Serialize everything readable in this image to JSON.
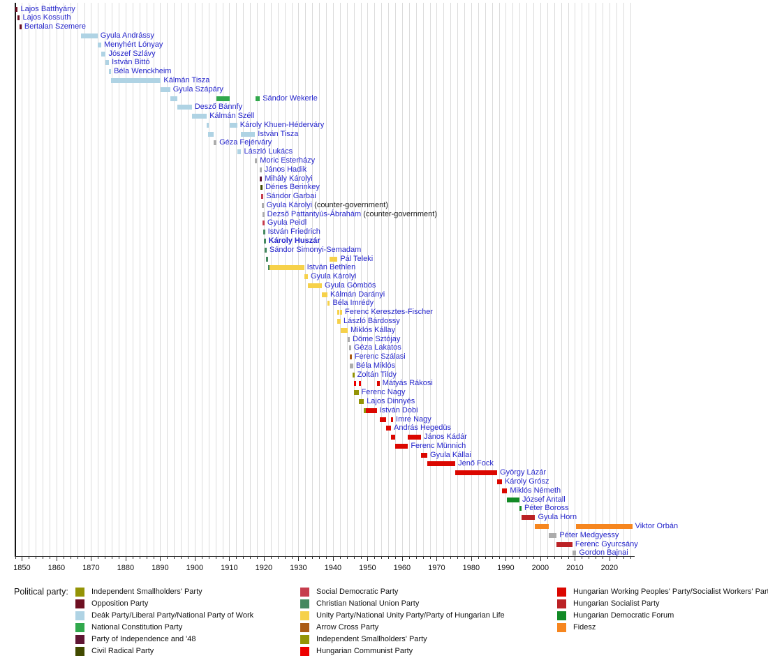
{
  "legend": {
    "title": "Political party:"
  },
  "chart_data": {
    "type": "timeline",
    "x_axis": {
      "min": 1848,
      "max": 2027,
      "minor_tick_step": 2,
      "tick_labels": [
        1850,
        1860,
        1870,
        1880,
        1890,
        1900,
        1910,
        1920,
        1930,
        1940,
        1950,
        1960,
        1970,
        1980,
        1990,
        2000,
        2010,
        2020
      ]
    },
    "parties": {
      "independent_smallholders": {
        "label": "Independent Smallholders' Party",
        "color": "#949406"
      },
      "opposition": {
        "label": "Opposition Party",
        "color": "#6E1022"
      },
      "deak": {
        "label": "Deák Party/Liberal Party/National Party of Work",
        "color": "#AFD3E4"
      },
      "national_constitution": {
        "label": "National Constitution Party",
        "color": "#31A84C"
      },
      "independence48": {
        "label": "Party of Independence and '48",
        "color": "#5F1533"
      },
      "civil_radical": {
        "label": "Civil Radical Party",
        "color": "#414A00"
      },
      "social_democratic": {
        "label": "Social Democratic Party",
        "color": "#C63D4D"
      },
      "christian_national": {
        "label": "Christian National Union Party",
        "color": "#44895F"
      },
      "unity": {
        "label": "Unity Party/National Unity Party/Party of Hungarian Life",
        "color": "#F6D14A"
      },
      "arrow_cross": {
        "label": "Arrow Cross Party",
        "color": "#AB5B13"
      },
      "communist": {
        "label": "Hungarian Communist Party",
        "color": "#ED0000"
      },
      "working_peoples": {
        "label": "Hungarian Working Peoples' Party/Socialist Workers' Party",
        "color": "#DB0700"
      },
      "socialist": {
        "label": "Hungarian Socialist Party",
        "color": "#BB2225"
      },
      "mdf": {
        "label": "Hungarian Democratic Forum",
        "color": "#128A26"
      },
      "fidesz": {
        "label": "Fidesz",
        "color": "#F6861F"
      },
      "none": {
        "label": "",
        "color": "#ACACAC"
      }
    },
    "legend_columns": [
      [
        "independent_smallholders",
        "opposition",
        "deak",
        "national_constitution",
        "independence48",
        "civil_radical"
      ],
      [
        "social_democratic",
        "christian_national",
        "unity",
        "arrow_cross",
        "independent_smallholders",
        "communist"
      ],
      [
        "working_peoples",
        "socialist",
        "mdf",
        "fidesz"
      ]
    ],
    "rows": [
      {
        "name": "Lajos Batthyány",
        "segments": [
          [
            1848.2,
            1848.8,
            "opposition"
          ]
        ]
      },
      {
        "name": "Lajos Kossuth",
        "segments": [
          [
            1848.8,
            1849.3,
            "opposition"
          ]
        ]
      },
      {
        "name": "Bertalan Szemere",
        "segments": [
          [
            1849.3,
            1849.65,
            "opposition"
          ]
        ]
      },
      {
        "name": "Gyula Andrássy",
        "segments": [
          [
            1867.15,
            1871.9,
            "deak"
          ]
        ]
      },
      {
        "name": "Menyhért Lónyay",
        "segments": [
          [
            1871.9,
            1872.95,
            "deak"
          ]
        ]
      },
      {
        "name": "Jószef Szlávy",
        "segments": [
          [
            1872.95,
            1874.25,
            "deak"
          ]
        ]
      },
      {
        "name": "István Bittó",
        "segments": [
          [
            1874.25,
            1875.2,
            "deak"
          ]
        ]
      },
      {
        "name": "Béla Wenckheim",
        "segments": [
          [
            1875.2,
            1875.8,
            "deak"
          ]
        ]
      },
      {
        "name": "Kálmán Tisza",
        "segments": [
          [
            1875.8,
            1890.2,
            "deak"
          ]
        ]
      },
      {
        "name": "Gyula Szápáry",
        "segments": [
          [
            1890.2,
            1892.9,
            "deak"
          ]
        ]
      },
      {
        "name": "Sándor Wekerle",
        "segments": [
          [
            1892.9,
            1895.0,
            "deak"
          ],
          [
            1906.3,
            1910.1,
            "national_constitution"
          ],
          [
            1917.65,
            1918.85,
            "national_constitution"
          ]
        ]
      },
      {
        "name": "Desző Bánnfy",
        "segments": [
          [
            1895.0,
            1899.15,
            "deak"
          ]
        ]
      },
      {
        "name": "Kálmán Széll",
        "segments": [
          [
            1899.15,
            1903.5,
            "deak"
          ]
        ]
      },
      {
        "name": "Károly Khuen-Héderváry",
        "segments": [
          [
            1903.5,
            1903.9,
            "deak"
          ],
          [
            1910.1,
            1912.3,
            "deak"
          ]
        ]
      },
      {
        "name": "István Tisza",
        "segments": [
          [
            1903.9,
            1905.45,
            "deak"
          ],
          [
            1913.45,
            1917.45,
            "deak"
          ]
        ]
      },
      {
        "name": "Géza Fejérváry",
        "segments": [
          [
            1905.45,
            1906.3,
            "none"
          ]
        ]
      },
      {
        "name": "László Lukács",
        "segments": [
          [
            1912.3,
            1913.45,
            "deak"
          ]
        ]
      },
      {
        "name": "Moric Esterházy",
        "segments": [
          [
            1917.45,
            1917.65,
            "none"
          ]
        ]
      },
      {
        "name": "János Hadik",
        "segments": [
          [
            1918.75,
            1918.9,
            "none"
          ]
        ]
      },
      {
        "name": "Mihály Károlyi",
        "segments": [
          [
            1918.85,
            1919.05,
            "independence48"
          ]
        ]
      },
      {
        "name": "Dénes Berinkey",
        "segments": [
          [
            1919.05,
            1919.25,
            "civil_radical"
          ]
        ]
      },
      {
        "name": "Sándor Garbai",
        "segments": [
          [
            1919.25,
            1919.6,
            "social_democratic"
          ]
        ]
      },
      {
        "name": "Gyula Károlyi",
        "suffix": " (counter-government)",
        "segments": [
          [
            1919.35,
            1919.55,
            "none"
          ]
        ]
      },
      {
        "name": "Dezső Pattantyús-Ábrahám",
        "suffix": " (counter-government)",
        "segments": [
          [
            1919.55,
            1919.8,
            "none"
          ]
        ]
      },
      {
        "name": "Gyula Peidl",
        "segments": [
          [
            1919.6,
            1919.75,
            "social_democratic"
          ]
        ]
      },
      {
        "name": "István Friedrich",
        "segments": [
          [
            1919.75,
            1919.95,
            "christian_national"
          ]
        ]
      },
      {
        "name": "Károly Huszár",
        "bold": true,
        "segments": [
          [
            1919.95,
            1920.2,
            "christian_national"
          ]
        ]
      },
      {
        "name": "Sándor Simonyi-Semadam",
        "segments": [
          [
            1920.2,
            1920.55,
            "christian_national"
          ]
        ]
      },
      {
        "name": "Pál Teleki",
        "segments": [
          [
            1920.55,
            1921.3,
            "christian_national"
          ],
          [
            1939.1,
            1941.3,
            "unity"
          ]
        ]
      },
      {
        "name": "István Bethlen",
        "segments": [
          [
            1921.3,
            1921.65,
            "christian_national"
          ],
          [
            1921.65,
            1931.65,
            "unity"
          ]
        ]
      },
      {
        "name": "Gyula Károlyi",
        "segments": [
          [
            1931.65,
            1932.75,
            "unity"
          ]
        ]
      },
      {
        "name": "Gyula Gömbös",
        "segments": [
          [
            1932.75,
            1936.8,
            "unity"
          ]
        ]
      },
      {
        "name": "Kálmán Darányi",
        "segments": [
          [
            1936.8,
            1938.4,
            "unity"
          ]
        ]
      },
      {
        "name": "Béla Imrédy",
        "segments": [
          [
            1938.4,
            1939.1,
            "unity"
          ]
        ]
      },
      {
        "name": "Ferenc Keresztes-Fischer",
        "segments": [
          [
            1941.2,
            1941.45,
            "unity"
          ],
          [
            1942.05,
            1942.3,
            "unity"
          ]
        ]
      },
      {
        "name": "László Bárdossy",
        "segments": [
          [
            1941.3,
            1942.25,
            "unity"
          ]
        ]
      },
      {
        "name": "Miklós Kállay",
        "segments": [
          [
            1942.25,
            1944.25,
            "unity"
          ]
        ]
      },
      {
        "name": "Döme Sztójay",
        "segments": [
          [
            1944.25,
            1944.65,
            "none"
          ]
        ]
      },
      {
        "name": "Géza Lakatos",
        "segments": [
          [
            1944.65,
            1944.85,
            "none"
          ]
        ]
      },
      {
        "name": "Ferenc Szálasi",
        "segments": [
          [
            1944.85,
            1945.3,
            "arrow_cross"
          ]
        ]
      },
      {
        "name": "Béla Miklós",
        "segments": [
          [
            1944.95,
            1945.85,
            "none"
          ]
        ]
      },
      {
        "name": "Zoltán Tildy",
        "segments": [
          [
            1945.6,
            1946.05,
            "independent_smallholders"
          ]
        ]
      },
      {
        "name": "Mátyás Rákosi",
        "segments": [
          [
            1946.0,
            1946.2,
            "communist"
          ],
          [
            1947.45,
            1947.65,
            "communist"
          ],
          [
            1952.65,
            1953.5,
            "working_peoples"
          ]
        ]
      },
      {
        "name": "Ferenc Nagy",
        "segments": [
          [
            1946.05,
            1947.4,
            "independent_smallholders"
          ]
        ]
      },
      {
        "name": "Lajos Dinnyés",
        "segments": [
          [
            1947.4,
            1948.95,
            "independent_smallholders"
          ]
        ]
      },
      {
        "name": "István Dobi",
        "segments": [
          [
            1948.95,
            1949.6,
            "independent_smallholders"
          ],
          [
            1949.6,
            1952.65,
            "working_peoples"
          ]
        ]
      },
      {
        "name": "Imre Nagy",
        "segments": [
          [
            1953.5,
            1955.3,
            "working_peoples"
          ],
          [
            1956.8,
            1956.95,
            "working_peoples"
          ]
        ]
      },
      {
        "name": "András Hegedüs",
        "segments": [
          [
            1955.3,
            1956.8,
            "working_peoples"
          ]
        ]
      },
      {
        "name": "János Kádár",
        "segments": [
          [
            1956.85,
            1958.1,
            "working_peoples"
          ],
          [
            1961.7,
            1965.5,
            "working_peoples"
          ]
        ]
      },
      {
        "name": "Ferenc Münnich",
        "segments": [
          [
            1958.1,
            1961.7,
            "working_peoples"
          ]
        ]
      },
      {
        "name": "Gyula Kállai",
        "segments": [
          [
            1965.5,
            1967.3,
            "working_peoples"
          ]
        ]
      },
      {
        "name": "Jenő Fock",
        "segments": [
          [
            1967.3,
            1975.4,
            "working_peoples"
          ]
        ]
      },
      {
        "name": "György Lázár",
        "segments": [
          [
            1975.4,
            1987.5,
            "working_peoples"
          ]
        ]
      },
      {
        "name": "Károly Grósz",
        "segments": [
          [
            1987.5,
            1988.9,
            "working_peoples"
          ]
        ]
      },
      {
        "name": "Miklós Németh",
        "segments": [
          [
            1988.9,
            1990.4,
            "working_peoples"
          ]
        ]
      },
      {
        "name": "József Antall",
        "segments": [
          [
            1990.4,
            1993.95,
            "mdf"
          ]
        ]
      },
      {
        "name": "Péter Boross",
        "segments": [
          [
            1993.95,
            1994.55,
            "mdf"
          ]
        ]
      },
      {
        "name": "Gyula Horn",
        "segments": [
          [
            1994.55,
            1998.5,
            "socialist"
          ]
        ]
      },
      {
        "name": "Viktor Orbán",
        "segments": [
          [
            1998.5,
            2002.4,
            "fidesz"
          ],
          [
            2010.4,
            2026.6,
            "fidesz"
          ]
        ]
      },
      {
        "name": "Péter Medgyessy",
        "segments": [
          [
            2002.4,
            2004.75,
            "none"
          ]
        ]
      },
      {
        "name": "Ferenc Gyurcsány",
        "segments": [
          [
            2004.75,
            2009.3,
            "socialist"
          ]
        ]
      },
      {
        "name": "Gordon Bajnai",
        "segments": [
          [
            2009.3,
            2010.4,
            "none"
          ]
        ]
      }
    ]
  }
}
